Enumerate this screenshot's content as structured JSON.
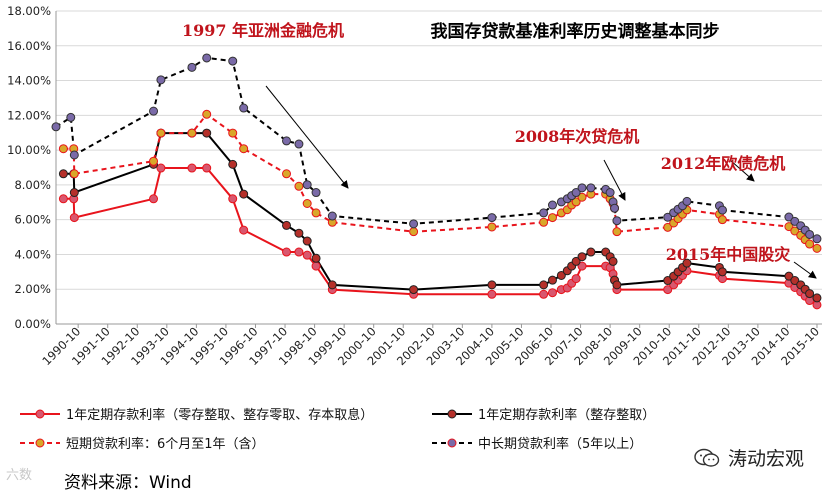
{
  "chart_data": {
    "type": "line",
    "title": "我国存贷款基准利率历史调整基本同步",
    "x": [
      "1990-10",
      "1991-10",
      "1992-10",
      "1993-10",
      "1994-10",
      "1995-10",
      "1996-10",
      "1997-10",
      "1998-10",
      "1999-10",
      "2000-10",
      "2001-10",
      "2002-10",
      "2003-10",
      "2004-10",
      "2005-10",
      "2006-10",
      "2007-10",
      "2008-10",
      "2009-10",
      "2010-10",
      "2011-10",
      "2012-10",
      "2013-10",
      "2014-10",
      "2015-10"
    ],
    "ylim": [
      0,
      18
    ],
    "yticks": [
      "0.00%",
      "2.00%",
      "4.00%",
      "6.00%",
      "8.00%",
      "10.00%",
      "12.00%",
      "14.00%",
      "16.00%",
      "18.00%"
    ],
    "xlabel": "",
    "ylabel": "",
    "grid": "horizontal",
    "legend_position": "bottom",
    "series": [
      {
        "name": "1年定期存款利率（零存整取、整存零取、存本取息）",
        "color": "#e8141c",
        "marker": "#d9576e",
        "dash": "solid",
        "points": [
          [
            1990.25,
            7.2
          ],
          [
            1990.6,
            7.2
          ],
          [
            1990.62,
            6.12
          ],
          [
            1993.3,
            7.2
          ],
          [
            1993.55,
            8.97
          ],
          [
            1994.6,
            8.97
          ],
          [
            1995.1,
            8.97
          ],
          [
            1995.98,
            7.2
          ],
          [
            1996.35,
            5.4
          ],
          [
            1997.8,
            4.14
          ],
          [
            1998.22,
            4.14
          ],
          [
            1998.5,
            3.96
          ],
          [
            1998.8,
            3.33
          ],
          [
            1999.35,
            1.98
          ],
          [
            2002.1,
            1.71
          ],
          [
            2004.75,
            1.71
          ],
          [
            2006.5,
            1.71
          ],
          [
            2006.8,
            1.8
          ],
          [
            2007.1,
            1.98
          ],
          [
            2007.3,
            2.07
          ],
          [
            2007.45,
            2.34
          ],
          [
            2007.6,
            2.61
          ],
          [
            2007.8,
            3.33
          ],
          [
            2008.6,
            3.33
          ],
          [
            2008.75,
            3.24
          ],
          [
            2008.85,
            2.88
          ],
          [
            2008.9,
            2.52
          ],
          [
            2008.98,
            1.98
          ],
          [
            2010.7,
            1.98
          ],
          [
            2010.9,
            2.25
          ],
          [
            2011.05,
            2.52
          ],
          [
            2011.2,
            2.79
          ],
          [
            2011.35,
            3.06
          ],
          [
            2012.45,
            2.79
          ],
          [
            2012.55,
            2.61
          ],
          [
            2014.8,
            2.35
          ],
          [
            2015.0,
            2.1
          ],
          [
            2015.2,
            1.85
          ],
          [
            2015.35,
            1.6
          ],
          [
            2015.5,
            1.35
          ],
          [
            2015.75,
            1.1
          ]
        ]
      },
      {
        "name": "1年定期存款利率（整存整取）",
        "color": "#000000",
        "marker": "#b5302a",
        "dash": "solid",
        "points": [
          [
            1990.25,
            8.64
          ],
          [
            1990.6,
            8.64
          ],
          [
            1990.62,
            7.56
          ],
          [
            1993.3,
            9.18
          ],
          [
            1993.55,
            10.98
          ],
          [
            1994.6,
            10.98
          ],
          [
            1995.1,
            10.98
          ],
          [
            1995.98,
            9.18
          ],
          [
            1996.35,
            7.47
          ],
          [
            1997.8,
            5.67
          ],
          [
            1998.22,
            5.22
          ],
          [
            1998.5,
            4.77
          ],
          [
            1998.8,
            3.78
          ],
          [
            1999.35,
            2.25
          ],
          [
            2002.1,
            1.98
          ],
          [
            2004.75,
            2.25
          ],
          [
            2006.5,
            2.25
          ],
          [
            2006.8,
            2.52
          ],
          [
            2007.1,
            2.79
          ],
          [
            2007.3,
            3.06
          ],
          [
            2007.45,
            3.33
          ],
          [
            2007.6,
            3.6
          ],
          [
            2007.8,
            3.87
          ],
          [
            2008.1,
            4.14
          ],
          [
            2008.6,
            4.14
          ],
          [
            2008.75,
            3.87
          ],
          [
            2008.85,
            3.6
          ],
          [
            2008.9,
            2.52
          ],
          [
            2008.98,
            2.25
          ],
          [
            2010.7,
            2.5
          ],
          [
            2010.9,
            2.75
          ],
          [
            2011.05,
            3.0
          ],
          [
            2011.2,
            3.25
          ],
          [
            2011.35,
            3.5
          ],
          [
            2012.45,
            3.25
          ],
          [
            2012.55,
            3.0
          ],
          [
            2014.8,
            2.75
          ],
          [
            2015.0,
            2.5
          ],
          [
            2015.2,
            2.25
          ],
          [
            2015.35,
            2.0
          ],
          [
            2015.5,
            1.75
          ],
          [
            2015.75,
            1.5
          ]
        ]
      },
      {
        "name": "短期贷款利率：6个月至1年（含）",
        "color": "#e8141c",
        "marker": "#d9a72a",
        "dash": "dashed",
        "points": [
          [
            1990.25,
            10.08
          ],
          [
            1990.6,
            10.08
          ],
          [
            1990.62,
            8.64
          ],
          [
            1993.3,
            9.36
          ],
          [
            1993.55,
            10.98
          ],
          [
            1994.6,
            10.98
          ],
          [
            1995.1,
            12.06
          ],
          [
            1995.98,
            10.98
          ],
          [
            1996.35,
            10.08
          ],
          [
            1997.8,
            8.64
          ],
          [
            1998.22,
            7.92
          ],
          [
            1998.5,
            6.93
          ],
          [
            1998.8,
            6.39
          ],
          [
            1999.35,
            5.85
          ],
          [
            2002.1,
            5.31
          ],
          [
            2004.75,
            5.58
          ],
          [
            2006.5,
            5.85
          ],
          [
            2006.8,
            6.12
          ],
          [
            2007.1,
            6.39
          ],
          [
            2007.3,
            6.57
          ],
          [
            2007.45,
            6.84
          ],
          [
            2007.6,
            7.02
          ],
          [
            2007.8,
            7.29
          ],
          [
            2008.1,
            7.47
          ],
          [
            2008.6,
            7.47
          ],
          [
            2008.75,
            7.2
          ],
          [
            2008.85,
            6.93
          ],
          [
            2008.9,
            6.66
          ],
          [
            2008.98,
            5.31
          ],
          [
            2010.7,
            5.56
          ],
          [
            2010.9,
            5.81
          ],
          [
            2011.05,
            6.06
          ],
          [
            2011.2,
            6.31
          ],
          [
            2011.35,
            6.56
          ],
          [
            2012.45,
            6.31
          ],
          [
            2012.55,
            6.0
          ],
          [
            2014.8,
            5.6
          ],
          [
            2015.0,
            5.35
          ],
          [
            2015.2,
            5.1
          ],
          [
            2015.35,
            4.85
          ],
          [
            2015.5,
            4.6
          ],
          [
            2015.75,
            4.35
          ]
        ]
      },
      {
        "name": "中长期贷款利率（5年以上）",
        "color": "#000000",
        "marker": "#7a6aa8",
        "dash": "dashed",
        "points": [
          [
            1990.0,
            11.34
          ],
          [
            1990.5,
            11.88
          ],
          [
            1990.62,
            9.72
          ],
          [
            1993.3,
            12.24
          ],
          [
            1993.55,
            14.04
          ],
          [
            1994.6,
            14.76
          ],
          [
            1995.1,
            15.3
          ],
          [
            1995.98,
            15.12
          ],
          [
            1996.35,
            12.42
          ],
          [
            1997.8,
            10.53
          ],
          [
            1998.22,
            10.35
          ],
          [
            1998.5,
            8.01
          ],
          [
            1998.8,
            7.56
          ],
          [
            1999.35,
            6.21
          ],
          [
            2002.1,
            5.76
          ],
          [
            2004.75,
            6.12
          ],
          [
            2006.5,
            6.39
          ],
          [
            2006.8,
            6.84
          ],
          [
            2007.1,
            7.02
          ],
          [
            2007.3,
            7.2
          ],
          [
            2007.45,
            7.38
          ],
          [
            2007.6,
            7.56
          ],
          [
            2007.8,
            7.83
          ],
          [
            2008.1,
            7.83
          ],
          [
            2008.6,
            7.74
          ],
          [
            2008.75,
            7.56
          ],
          [
            2008.85,
            7.02
          ],
          [
            2008.9,
            6.66
          ],
          [
            2008.98,
            5.94
          ],
          [
            2010.7,
            6.14
          ],
          [
            2010.9,
            6.4
          ],
          [
            2011.05,
            6.6
          ],
          [
            2011.2,
            6.8
          ],
          [
            2011.35,
            7.05
          ],
          [
            2012.45,
            6.8
          ],
          [
            2012.55,
            6.55
          ],
          [
            2014.8,
            6.15
          ],
          [
            2015.0,
            5.9
          ],
          [
            2015.2,
            5.65
          ],
          [
            2015.35,
            5.4
          ],
          [
            2015.5,
            5.15
          ],
          [
            2015.75,
            4.9
          ]
        ]
      }
    ],
    "annotations": [
      {
        "text": "1997 年亚洲金融危机",
        "color": "#c0141c"
      },
      {
        "text": "2008年次贷危机",
        "color": "#c0141c"
      },
      {
        "text": "2012年欧债危机",
        "color": "#c0141c"
      },
      {
        "text": "2015年中国股灾",
        "color": "#c0141c"
      }
    ]
  },
  "footer": {
    "source": "资料来源：Wind",
    "watermark": "六数",
    "brand": "涛动宏观"
  }
}
